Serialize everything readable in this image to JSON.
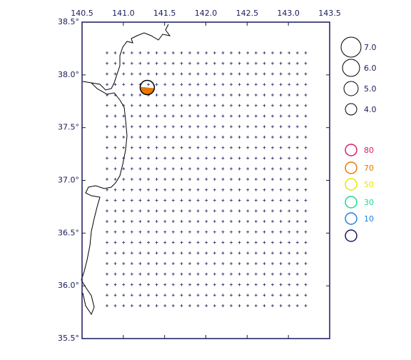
{
  "map": {
    "type": "map",
    "xlim": [
      140.5,
      143.5
    ],
    "ylim": [
      35.5,
      38.5
    ],
    "xticks": [
      {
        "value": 140.5,
        "label": "140.5"
      },
      {
        "value": 141,
        "label": "141.0"
      },
      {
        "value": 141.5,
        "label": "141.5"
      },
      {
        "value": 142,
        "label": "142.0"
      },
      {
        "value": 142.5,
        "label": "142.5"
      },
      {
        "value": 143,
        "label": "143.0"
      },
      {
        "value": 143.5,
        "label": "143.5"
      }
    ],
    "yticks": [
      {
        "value": 38.5,
        "label": "38.5°"
      },
      {
        "value": 38,
        "label": "38.0°"
      },
      {
        "value": 37.5,
        "label": "37.5°"
      },
      {
        "value": 37,
        "label": "37.0°"
      },
      {
        "value": 36.5,
        "label": "36.5°"
      },
      {
        "value": 36,
        "label": "36.0°"
      },
      {
        "value": 35.5,
        "label": "35.5°"
      }
    ],
    "event": {
      "lon": 141.29,
      "lat": 37.88,
      "magnitude": 5.0,
      "depth": 70,
      "color": "#e87800"
    },
    "magnitude_legend": [
      {
        "value": 7,
        "label": "7.0"
      },
      {
        "value": 6,
        "label": "6.0"
      },
      {
        "value": 5,
        "label": "5.0"
      },
      {
        "value": 4,
        "label": "4.0"
      }
    ],
    "depth_legend": [
      {
        "value": 80,
        "label": "80",
        "color": "#d81e6a"
      },
      {
        "value": 70,
        "label": "70",
        "color": "#e87800"
      },
      {
        "value": 50,
        "label": "50",
        "color": "#e8e800"
      },
      {
        "value": 30,
        "label": "30",
        "color": "#20d890"
      },
      {
        "value": 10,
        "label": "10",
        "color": "#2080e0"
      },
      {
        "value": null,
        "label": null,
        "color": "#1a1a5a"
      }
    ]
  }
}
